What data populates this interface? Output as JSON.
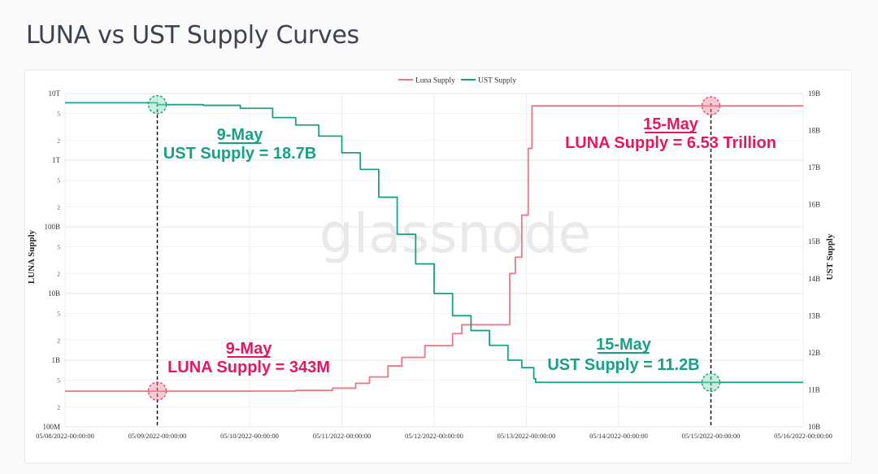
{
  "page": {
    "title": "LUNA vs UST Supply Curves"
  },
  "watermark": "glassnode",
  "chart_data": {
    "type": "line",
    "x_label_left": "LUNA Supply",
    "y_label_right": "UST Supply",
    "x_tick_labels": [
      "05/08/2022-00:00:00",
      "05/09/2022-00:00:00",
      "05/10/2022-00:00:00",
      "05/11/2022-00:00:00",
      "05/12/2022-00:00:00",
      "05/13/2022-00:00:00",
      "05/14/2022-00:00:00",
      "05/15/2022-00:00:00",
      "05/16/2022-00:00:00"
    ],
    "x_range_days": [
      0,
      8
    ],
    "left_axis": {
      "scale": "log",
      "range": [
        100000000,
        10000000000000
      ],
      "major_ticks": [
        {
          "value": 100000000,
          "label": "100M"
        },
        {
          "value": 1000000000,
          "label": "1B"
        },
        {
          "value": 10000000000,
          "label": "10B"
        },
        {
          "value": 100000000000,
          "label": "100B"
        },
        {
          "value": 1000000000000,
          "label": "1T"
        },
        {
          "value": 10000000000000,
          "label": "10T"
        }
      ],
      "minor_multipliers": [
        2,
        5
      ]
    },
    "right_axis": {
      "scale": "linear",
      "range": [
        10,
        19
      ],
      "ticks": [
        {
          "value": 10,
          "label": "10B"
        },
        {
          "value": 11,
          "label": "11B"
        },
        {
          "value": 12,
          "label": "12B"
        },
        {
          "value": 13,
          "label": "13B"
        },
        {
          "value": 14,
          "label": "14B"
        },
        {
          "value": 15,
          "label": "15B"
        },
        {
          "value": 16,
          "label": "16B"
        },
        {
          "value": 17,
          "label": "17B"
        },
        {
          "value": 18,
          "label": "18B"
        },
        {
          "value": 19,
          "label": "19B"
        }
      ]
    },
    "legend": {
      "placement": "top-center"
    },
    "series": [
      {
        "name": "Luna Supply",
        "color": "#f07585",
        "axis": "left",
        "points": [
          [
            0,
            343000000
          ],
          [
            1,
            343000000
          ],
          [
            2,
            344000000
          ],
          [
            2.5,
            352000000
          ],
          [
            2.9,
            380000000
          ],
          [
            3.15,
            450000000
          ],
          [
            3.3,
            560000000
          ],
          [
            3.5,
            820000000
          ],
          [
            3.65,
            1100000000
          ],
          [
            3.9,
            1650000000
          ],
          [
            4.2,
            2500000000
          ],
          [
            4.3,
            3400000000
          ],
          [
            4.6,
            3400000000
          ],
          [
            4.81,
            3400000000
          ],
          [
            4.82,
            20000000000
          ],
          [
            4.88,
            35000000000
          ],
          [
            4.95,
            150000000000
          ],
          [
            5.02,
            1500000000000
          ],
          [
            5.06,
            6530000000000
          ],
          [
            6,
            6530000000000
          ],
          [
            7,
            6530000000000
          ],
          [
            8,
            6530000000000
          ]
        ]
      },
      {
        "name": "UST Supply",
        "color": "#18a185",
        "axis": "right",
        "points": [
          [
            0,
            18.75
          ],
          [
            1,
            18.7
          ],
          [
            1.5,
            18.68
          ],
          [
            1.9,
            18.6
          ],
          [
            2.25,
            18.35
          ],
          [
            2.5,
            18.15
          ],
          [
            2.75,
            17.85
          ],
          [
            3.0,
            17.4
          ],
          [
            3.2,
            16.95
          ],
          [
            3.4,
            16.2
          ],
          [
            3.6,
            15.2
          ],
          [
            3.8,
            14.4
          ],
          [
            4.0,
            13.6
          ],
          [
            4.2,
            13.0
          ],
          [
            4.4,
            12.6
          ],
          [
            4.6,
            12.2
          ],
          [
            4.8,
            11.8
          ],
          [
            4.95,
            11.6
          ],
          [
            5.08,
            11.3
          ],
          [
            5.1,
            11.2
          ],
          [
            6,
            11.2
          ],
          [
            7,
            11.2
          ],
          [
            8,
            11.2
          ]
        ]
      }
    ],
    "markers": [
      {
        "x": 1,
        "series": "UST Supply",
        "value": 18.7,
        "color": "#18a185"
      },
      {
        "x": 1,
        "series": "Luna Supply",
        "value": 343000000,
        "color": "#e8476c"
      },
      {
        "x": 7,
        "series": "Luna Supply",
        "value": 6530000000000,
        "color": "#e8476c"
      },
      {
        "x": 7,
        "series": "UST Supply",
        "value": 11.2,
        "color": "#18a185"
      }
    ],
    "vlines": [
      1,
      7
    ],
    "annotations": [
      {
        "title": "9-May",
        "text": "UST Supply = 18.7B",
        "color": "#18a185"
      },
      {
        "title": "9-May",
        "text": "LUNA Supply = 343M",
        "color": "#e8175d"
      },
      {
        "title": "15-May",
        "text": "LUNA Supply = 6.53 Trillion",
        "color": "#e8175d"
      },
      {
        "title": "15-May",
        "text": "UST Supply = 11.2B",
        "color": "#18a185"
      }
    ]
  }
}
